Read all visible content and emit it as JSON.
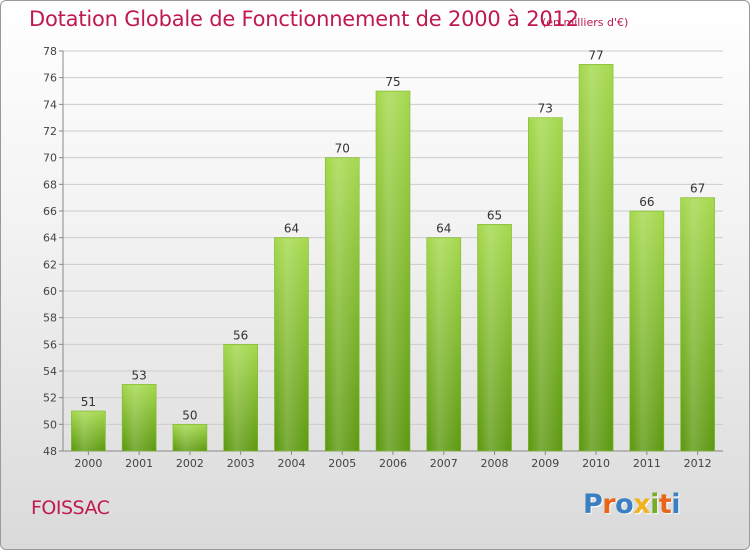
{
  "title": "Dotation Globale de Fonctionnement de 2000 à 2012",
  "unit": "(en milliers d'€)",
  "city": "FOISSAC",
  "logo": {
    "text": "Proxiti",
    "colors": [
      "#3a7fc2",
      "#e8651a",
      "#3a7fc2",
      "#f1b31c",
      "#77ad2a",
      "#e8651a",
      "#3a7fc2"
    ]
  },
  "colors": {
    "title": "#c0194e",
    "bar_light": "#a6d94f",
    "bar_dark": "#5f9a14",
    "grid": "#cccccc"
  },
  "chart_data": {
    "type": "bar",
    "title": "Dotation Globale de Fonctionnement de 2000 à 2012",
    "categories": [
      "2000",
      "2001",
      "2002",
      "2003",
      "2004",
      "2005",
      "2006",
      "2007",
      "2008",
      "2009",
      "2010",
      "2011",
      "2012"
    ],
    "values": [
      51,
      53,
      50,
      56,
      64,
      70,
      75,
      64,
      65,
      73,
      77,
      66,
      67
    ],
    "ylim": [
      48,
      78
    ],
    "yticks": [
      48,
      50,
      52,
      54,
      56,
      58,
      60,
      62,
      64,
      66,
      68,
      70,
      72,
      74,
      76,
      78
    ],
    "grid": true,
    "data_labels": true
  }
}
